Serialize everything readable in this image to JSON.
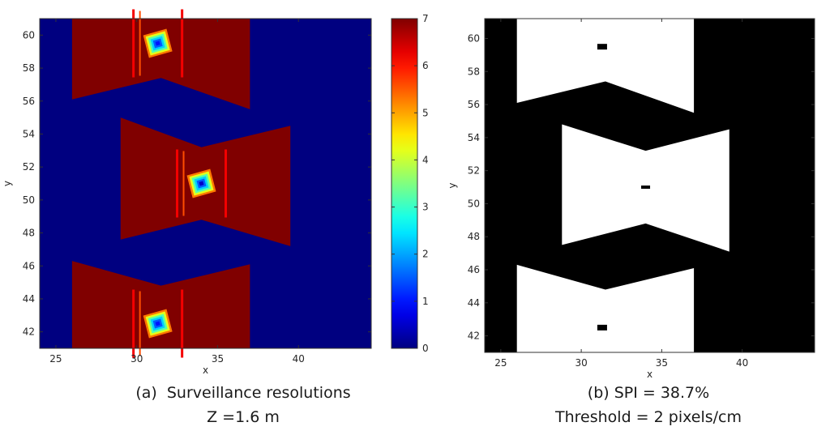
{
  "chart_data": [
    {
      "id": "a",
      "type": "heatmap",
      "xlabel": "x",
      "ylabel": "y",
      "xlim": [
        24,
        44.5
      ],
      "ylim": [
        41,
        61
      ],
      "xticks": [
        "25",
        "30",
        "35",
        "40"
      ],
      "yticks": [
        "42",
        "44",
        "46",
        "48",
        "50",
        "52",
        "54",
        "56",
        "58",
        "60"
      ],
      "colorbar": {
        "min": 0,
        "max": 7,
        "ticks": [
          "0",
          "1",
          "2",
          "3",
          "4",
          "5",
          "6",
          "7"
        ],
        "colormap": "jet"
      },
      "caption": [
        "(a)  Surveillance resolutions",
        "Z =1.6 m"
      ],
      "regions": [
        {
          "label": "top",
          "value": 7,
          "xmin": 26,
          "xmax": 37,
          "ytop": 61,
          "y_left": 56.1,
          "y_mid": 57.4,
          "y_right": 55.5,
          "x_mid": 31.5
        },
        {
          "label": "middle",
          "value": 7,
          "xmin": 29,
          "xmax": 39.5,
          "y_top_left": 55,
          "y_top_mid": 53.2,
          "y_top_right": 54.5,
          "y_bot_left": 47.6,
          "y_bot_mid": 48.8,
          "y_bot_right": 47.2,
          "x_mid": 34
        },
        {
          "label": "bottom",
          "value": 7,
          "xmin": 26,
          "xmax": 37,
          "ybottom": 41,
          "y_left": 46.3,
          "y_mid": 44.8,
          "y_right": 46.1,
          "x_mid": 31.5
        }
      ],
      "hotspots": [
        {
          "x": 31.3,
          "y": 59.5,
          "center_value": 1
        },
        {
          "x": 34.0,
          "y": 51.0,
          "center_value": 0.5
        },
        {
          "x": 31.3,
          "y": 42.5,
          "center_value": 1
        }
      ]
    },
    {
      "id": "b",
      "type": "heatmap",
      "xlabel": "x",
      "ylabel": "y",
      "xlim": [
        24,
        44.5
      ],
      "ylim": [
        41,
        61.2
      ],
      "xticks": [
        "25",
        "30",
        "35",
        "40"
      ],
      "yticks": [
        "42",
        "44",
        "46",
        "48",
        "50",
        "52",
        "54",
        "56",
        "58",
        "60"
      ],
      "caption": [
        "(b) SPI = 38.7%",
        "Threshold = 2 pixels/cm"
      ],
      "spi": "38.7%",
      "threshold": "2 pixels/cm",
      "white_regions": [
        {
          "label": "top",
          "xmin": 26,
          "xmax": 37,
          "ytop": 61.2,
          "y_left": 56.1,
          "y_mid": 57.4,
          "y_right": 55.5,
          "x_mid": 31.5
        },
        {
          "label": "middle",
          "xmin": 28.8,
          "xmax": 39.2,
          "y_top_left": 54.8,
          "y_top_mid": 53.2,
          "y_top_right": 54.5,
          "y_bot_left": 47.5,
          "y_bot_mid": 48.8,
          "y_bot_right": 47.1,
          "x_mid": 34
        },
        {
          "label": "bottom",
          "xmin": 26,
          "xmax": 37,
          "ybottom": 41,
          "y_left": 46.3,
          "y_mid": 44.8,
          "y_right": 46.1,
          "x_mid": 31.5
        }
      ],
      "black_dots": [
        {
          "x": 31.3,
          "y": 59.5
        },
        {
          "x": 34.0,
          "y": 51.0
        },
        {
          "x": 31.3,
          "y": 42.5
        }
      ]
    }
  ]
}
